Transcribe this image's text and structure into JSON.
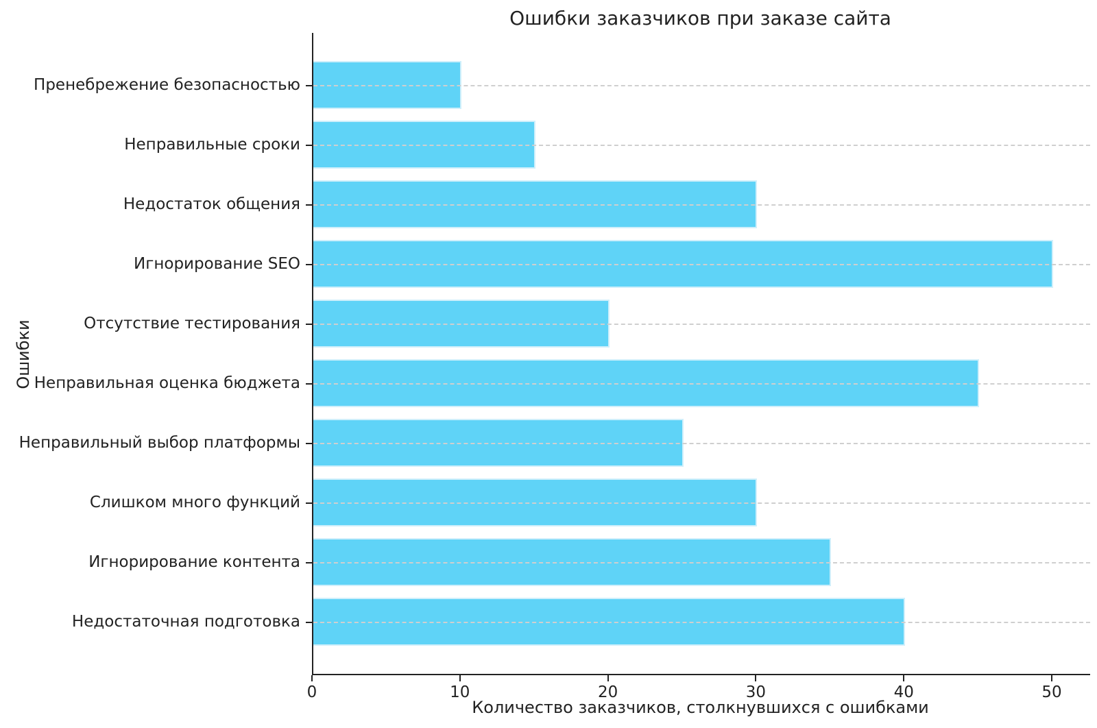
{
  "chart_data": {
    "type": "bar",
    "orientation": "horizontal",
    "title": "Ошибки заказчиков при заказе сайта",
    "xlabel": "Количество заказчиков, столкнувшихся с ошибками",
    "ylabel": "Ошибки",
    "categories": [
      "Пренебрежение безопасностью",
      "Неправильные сроки",
      "Недостаток общения",
      "Игнорирование SEO",
      "Отсутствие тестирования",
      "Неправильная оценка бюджета",
      "Неправильный выбор платформы",
      "Слишком много функций",
      "Игнорирование контента",
      "Недостаточная подготовка"
    ],
    "values": [
      10,
      15,
      30,
      50,
      20,
      45,
      25,
      30,
      35,
      40
    ],
    "xticks": [
      0,
      10,
      20,
      30,
      40,
      50
    ],
    "xlim": [
      0,
      52.5
    ],
    "grid": "horizontal-dashed",
    "legend": "none",
    "colors": {
      "bar_fill": "#5fd3f7",
      "bar_edge": "#cfeffb",
      "grid_line": "#cfcfcf",
      "spine": "#222222",
      "text": "#222222",
      "background": "#ffffff"
    }
  }
}
